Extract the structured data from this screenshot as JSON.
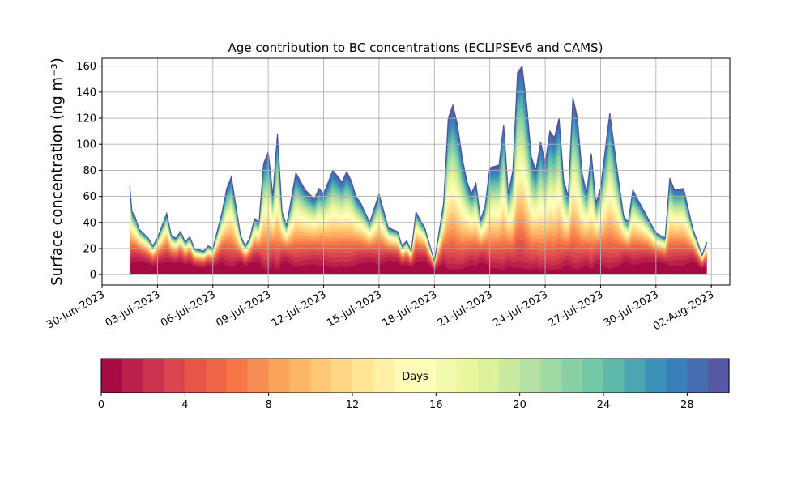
{
  "chart_data": {
    "type": "area",
    "stacked": true,
    "title": "Age contribution to BC concentrations (ECLIPSEv6 and CAMS)",
    "xlabel": "",
    "ylabel": "Surface concentration (ng m⁻³)",
    "ylim": [
      -8,
      166
    ],
    "yticks": [
      0,
      20,
      40,
      60,
      80,
      100,
      120,
      140,
      160
    ],
    "xlim": [
      "2023-06-30T00:00",
      "2023-08-03T00:00"
    ],
    "xticks": [
      "2023-06-30",
      "2023-07-03",
      "2023-07-06",
      "2023-07-09",
      "2023-07-12",
      "2023-07-15",
      "2023-07-18",
      "2023-07-21",
      "2023-07-24",
      "2023-07-27",
      "2023-07-30",
      "2023-08-02"
    ],
    "xtick_labels": [
      "30-Jun-2023",
      "03-Jul-2023",
      "06-Jul-2023",
      "09-Jul-2023",
      "12-Jul-2023",
      "15-Jul-2023",
      "18-Jul-2023",
      "21-Jul-2023",
      "24-Jul-2023",
      "27-Jul-2023",
      "30-Jul-2023",
      "02-Aug-2023"
    ],
    "grid": true,
    "age_bins_days": 30,
    "total": {
      "x": [
        "2023-07-01T12:00",
        "2023-07-01T15:00",
        "2023-07-01T18:00",
        "2023-07-02T00:00",
        "2023-07-02T12:00",
        "2023-07-02T18:00",
        "2023-07-03T00:00",
        "2023-07-03T12:00",
        "2023-07-03T18:00",
        "2023-07-04T00:00",
        "2023-07-04T06:00",
        "2023-07-04T12:00",
        "2023-07-04T18:00",
        "2023-07-05T00:00",
        "2023-07-05T12:00",
        "2023-07-05T18:00",
        "2023-07-06T00:00",
        "2023-07-06T12:00",
        "2023-07-06T18:00",
        "2023-07-07T00:00",
        "2023-07-07T12:00",
        "2023-07-07T18:00",
        "2023-07-08T00:00",
        "2023-07-08T06:00",
        "2023-07-08T12:00",
        "2023-07-08T18:00",
        "2023-07-09T00:00",
        "2023-07-09T03:00",
        "2023-07-09T06:00",
        "2023-07-09T12:00",
        "2023-07-09T18:00",
        "2023-07-10T00:00",
        "2023-07-10T12:00",
        "2023-07-11T00:00",
        "2023-07-11T12:00",
        "2023-07-11T18:00",
        "2023-07-12T00:00",
        "2023-07-12T12:00",
        "2023-07-13T00:00",
        "2023-07-13T06:00",
        "2023-07-13T12:00",
        "2023-07-13T18:00",
        "2023-07-14T00:00",
        "2023-07-14T12:00",
        "2023-07-15T00:00",
        "2023-07-15T12:00",
        "2023-07-16T00:00",
        "2023-07-16T06:00",
        "2023-07-16T12:00",
        "2023-07-16T18:00",
        "2023-07-17T00:00",
        "2023-07-17T12:00",
        "2023-07-18T00:00",
        "2023-07-18T12:00",
        "2023-07-18T18:00",
        "2023-07-19T00:00",
        "2023-07-19T06:00",
        "2023-07-19T12:00",
        "2023-07-19T18:00",
        "2023-07-20T00:00",
        "2023-07-20T06:00",
        "2023-07-20T12:00",
        "2023-07-20T18:00",
        "2023-07-21T00:00",
        "2023-07-21T12:00",
        "2023-07-21T18:00",
        "2023-07-22T00:00",
        "2023-07-22T06:00",
        "2023-07-22T12:00",
        "2023-07-22T18:00",
        "2023-07-23T00:00",
        "2023-07-23T06:00",
        "2023-07-23T12:00",
        "2023-07-23T18:00",
        "2023-07-24T00:00",
        "2023-07-24T06:00",
        "2023-07-24T12:00",
        "2023-07-24T18:00",
        "2023-07-25T00:00",
        "2023-07-25T06:00",
        "2023-07-25T12:00",
        "2023-07-25T18:00",
        "2023-07-26T00:00",
        "2023-07-26T06:00",
        "2023-07-26T12:00",
        "2023-07-26T18:00",
        "2023-07-27T00:00",
        "2023-07-27T12:00",
        "2023-07-28T00:00",
        "2023-07-28T06:00",
        "2023-07-28T12:00",
        "2023-07-28T18:00",
        "2023-07-29T00:00",
        "2023-07-29T12:00",
        "2023-07-30T00:00",
        "2023-07-30T06:00",
        "2023-07-30T12:00",
        "2023-07-30T18:00",
        "2023-07-31T00:00",
        "2023-07-31T12:00",
        "2023-08-01T00:00",
        "2023-08-01T12:00",
        "2023-08-01T18:00"
      ],
      "y": [
        68,
        48,
        46,
        35,
        28,
        22,
        28,
        47,
        30,
        28,
        33,
        25,
        29,
        20,
        18,
        22,
        20,
        48,
        66,
        75,
        30,
        22,
        28,
        43,
        40,
        85,
        94,
        78,
        60,
        108,
        48,
        38,
        78,
        65,
        58,
        66,
        62,
        80,
        71,
        79,
        72,
        60,
        55,
        40,
        62,
        36,
        33,
        22,
        26,
        18,
        48,
        35,
        10,
        55,
        120,
        130,
        115,
        90,
        72,
        62,
        70,
        42,
        53,
        82,
        84,
        115,
        62,
        80,
        155,
        160,
        130,
        90,
        80,
        102,
        85,
        110,
        105,
        120,
        72,
        60,
        136,
        120,
        78,
        62,
        93,
        55,
        66,
        124,
        70,
        45,
        40,
        65,
        58,
        45,
        32,
        30,
        28,
        74,
        65,
        66,
        35,
        15,
        25
      ]
    },
    "colorbar": {
      "label": "Days",
      "range": [
        0,
        30
      ],
      "ticks": [
        0,
        4,
        8,
        12,
        16,
        20,
        24,
        28
      ],
      "colormap": "Spectral",
      "levels": 30
    }
  }
}
